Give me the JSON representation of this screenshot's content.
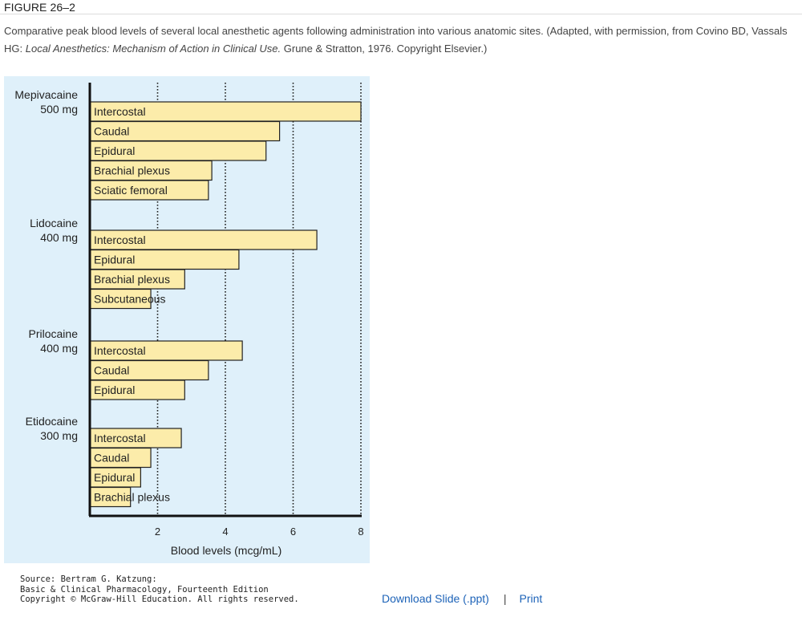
{
  "figure": {
    "label": "FIGURE 26–2",
    "caption": {
      "text": "Comparative peak blood levels of several local anesthetic agents following administration into various anatomic sites. (Adapted, with permission, from Covino BD, Vassals HG: ",
      "italic": "Local Anesthetics: Mechanism of Action in Clinical Use.",
      "tail": " Grune & Stratton, 1976. Copyright Elsevier.)"
    }
  },
  "chart_data": {
    "type": "bar",
    "orientation": "horizontal",
    "xlabel": "Blood levels (mcg/mL)",
    "xlim": [
      0,
      8
    ],
    "xticks": [
      2,
      4,
      6,
      8
    ],
    "grid": "vertical dotted lines at ticks",
    "bar_color": "#fcecaa",
    "groups": [
      {
        "agent": "Mepivacaine",
        "dose": "500 mg",
        "bars": [
          {
            "site": "Intercostal",
            "value": 8.0
          },
          {
            "site": "Caudal",
            "value": 5.6
          },
          {
            "site": "Epidural",
            "value": 5.2
          },
          {
            "site": "Brachial plexus",
            "value": 3.6
          },
          {
            "site": "Sciatic femoral",
            "value": 3.5
          }
        ]
      },
      {
        "agent": "Lidocaine",
        "dose": "400 mg",
        "bars": [
          {
            "site": "Intercostal",
            "value": 6.7
          },
          {
            "site": "Epidural",
            "value": 4.4
          },
          {
            "site": "Brachial plexus",
            "value": 2.8
          },
          {
            "site": "Subcutaneous",
            "value": 1.8
          }
        ]
      },
      {
        "agent": "Prilocaine",
        "dose": "400 mg",
        "bars": [
          {
            "site": "Intercostal",
            "value": 4.5
          },
          {
            "site": "Caudal",
            "value": 3.5
          },
          {
            "site": "Epidural",
            "value": 2.8
          }
        ]
      },
      {
        "agent": "Etidocaine",
        "dose": "300 mg",
        "bars": [
          {
            "site": "Intercostal",
            "value": 2.7
          },
          {
            "site": "Caudal",
            "value": 1.8
          },
          {
            "site": "Epidural",
            "value": 1.5
          },
          {
            "site": "Brachial plexus",
            "value": 1.2
          }
        ]
      }
    ]
  },
  "source": {
    "line1": "Source: Bertram G. Katzung:",
    "line2": "Basic & Clinical Pharmacology, Fourteenth Edition",
    "line3": "Copyright © McGraw-Hill Education. All rights reserved."
  },
  "actions": {
    "download_label": "Download Slide (.ppt)",
    "separator": "|",
    "print_label": "Print"
  }
}
